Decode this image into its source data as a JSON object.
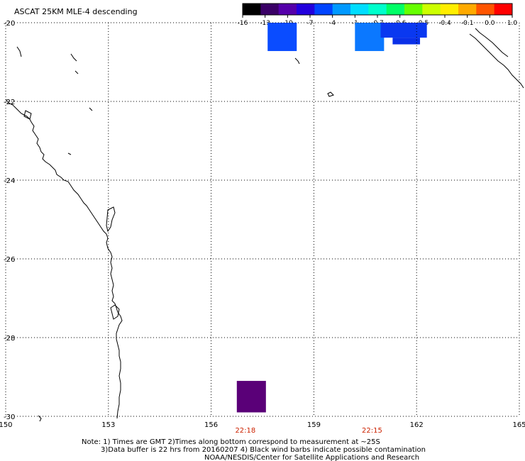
{
  "title": "ASCAT 25KM MLE-4 descending",
  "colorbar": {
    "ticks": [
      "-16",
      "-13",
      "-10",
      "-7",
      "-4",
      "-1",
      "-0.7",
      "-0.6",
      "-0.5",
      "-0.4",
      "-0.1",
      "0.0",
      "1.0"
    ],
    "colors": [
      "#000000",
      "#3a0066",
      "#5500aa",
      "#2200dd",
      "#0044ff",
      "#0099ff",
      "#00ddff",
      "#00ffcc",
      "#00ff66",
      "#66ff00",
      "#ccff00",
      "#ffee00",
      "#ffaa00",
      "#ff5500",
      "#ff0000"
    ]
  },
  "axes": {
    "lon_labels": [
      "150",
      "153",
      "156",
      "159",
      "162",
      "165"
    ],
    "lat_labels": [
      "-20",
      "-22",
      "-24",
      "-26",
      "-28",
      "-30"
    ],
    "lon_range": [
      150,
      165
    ],
    "lat_range": [
      -20,
      -30
    ]
  },
  "time_labels": [
    {
      "text": "22:18",
      "lon": 157.0
    },
    {
      "text": "22:15",
      "lon": 160.7
    }
  ],
  "time_label_color": "#cc2200",
  "data_cells": [
    {
      "lon0": 157.65,
      "lon1": 158.5,
      "lat0": -20.0,
      "lat1": -20.72,
      "color": "#0a4cff"
    },
    {
      "lon0": 160.2,
      "lon1": 161.05,
      "lat0": -20.0,
      "lat1": -20.72,
      "color": "#0b78ff"
    },
    {
      "lon0": 160.95,
      "lon1": 162.3,
      "lat0": -20.0,
      "lat1": -20.38,
      "color": "#0a38f0"
    },
    {
      "lon0": 161.3,
      "lon1": 162.1,
      "lat0": -20.38,
      "lat1": -20.55,
      "color": "#0a30e8"
    },
    {
      "lon0": 156.75,
      "lon1": 157.6,
      "lat0": -29.1,
      "lat1": -29.9,
      "color": "#5a0078"
    }
  ],
  "notes": {
    "line1": "Note: 1) Times are GMT 2)Times along bottom correspond to measurement at ~25S",
    "line2": "3)Data buffer is 22 hrs from 20160207 4) Black wind barbs indicate possible contamination",
    "line3": "NOAA/NESDIS/Center for Satellite Applications and Research"
  }
}
